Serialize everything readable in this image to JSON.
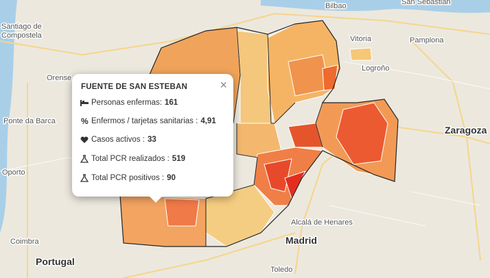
{
  "map": {
    "labels": [
      "Bilbao",
      "San Sebastián",
      "Santiago de",
      "Compostela",
      "Vitoria",
      "Pamplona",
      "Logroño",
      "Orense",
      "Ponte da Barca",
      "Zaragoza",
      "Oporto",
      "Coimbra",
      "Portugal",
      "Alcalá de Henares",
      "Madrid",
      "Toledo"
    ]
  },
  "popup": {
    "title": "FUENTE DE SAN ESTEBAN",
    "close": "×",
    "rows": [
      {
        "label": "Personas enfermas:",
        "value": 161
      },
      {
        "label": "Enfermos / tarjetas sanitarias :",
        "value": "4,91"
      },
      {
        "label": "Casos activos :",
        "value": 33
      },
      {
        "label": "Total PCR realizados :",
        "value": 519
      },
      {
        "label": "Total PCR positivos :",
        "value": 90
      }
    ]
  }
}
